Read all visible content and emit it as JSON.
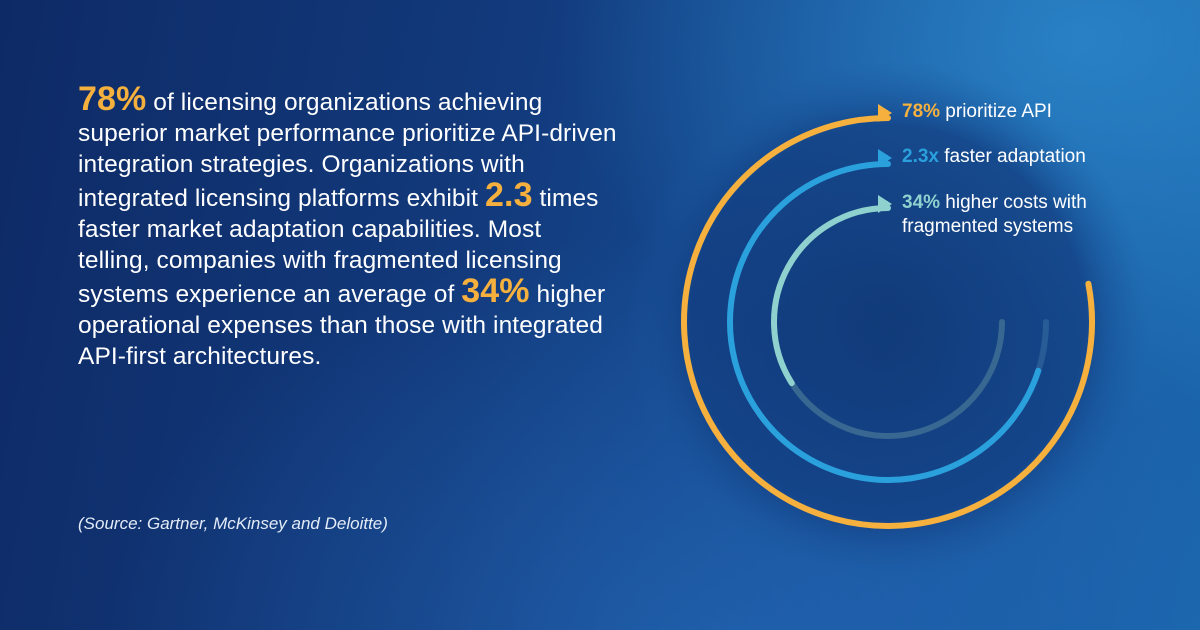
{
  "paragraph": {
    "h1": "78%",
    "t1": " of licensing organizations achieving superior market performance prioritize API-driven integration strategies. Organizations with integrated licensing platforms exhibit ",
    "h2": "2.3",
    "t2": " times faster market adaptation capabilities. Most telling, companies with fragmented licensing systems experience an average of ",
    "h3": "34%",
    "t3": " higher operational expenses than those with integrated API-first architectures."
  },
  "source": "(Source: Gartner, McKinsey and Deloitte)",
  "chart_data": {
    "type": "radial",
    "series": [
      {
        "value_text": "78%",
        "label_text": " prioritize API",
        "color": "#f5b03e",
        "fraction": 0.78
      },
      {
        "value_text": "2.3x",
        "label_text": " faster adaptation",
        "color": "#2aa0dd",
        "fraction": 0.7
      },
      {
        "value_text": "34%",
        "label_text": " higher costs with fragmented systems",
        "color": "#8fd1cf",
        "fraction": 0.34
      }
    ]
  },
  "colors": {
    "highlight": "#f5b03e",
    "ring_outer": "#f5b03e",
    "ring_middle": "#2aa0dd",
    "ring_inner": "#8fd1cf"
  }
}
